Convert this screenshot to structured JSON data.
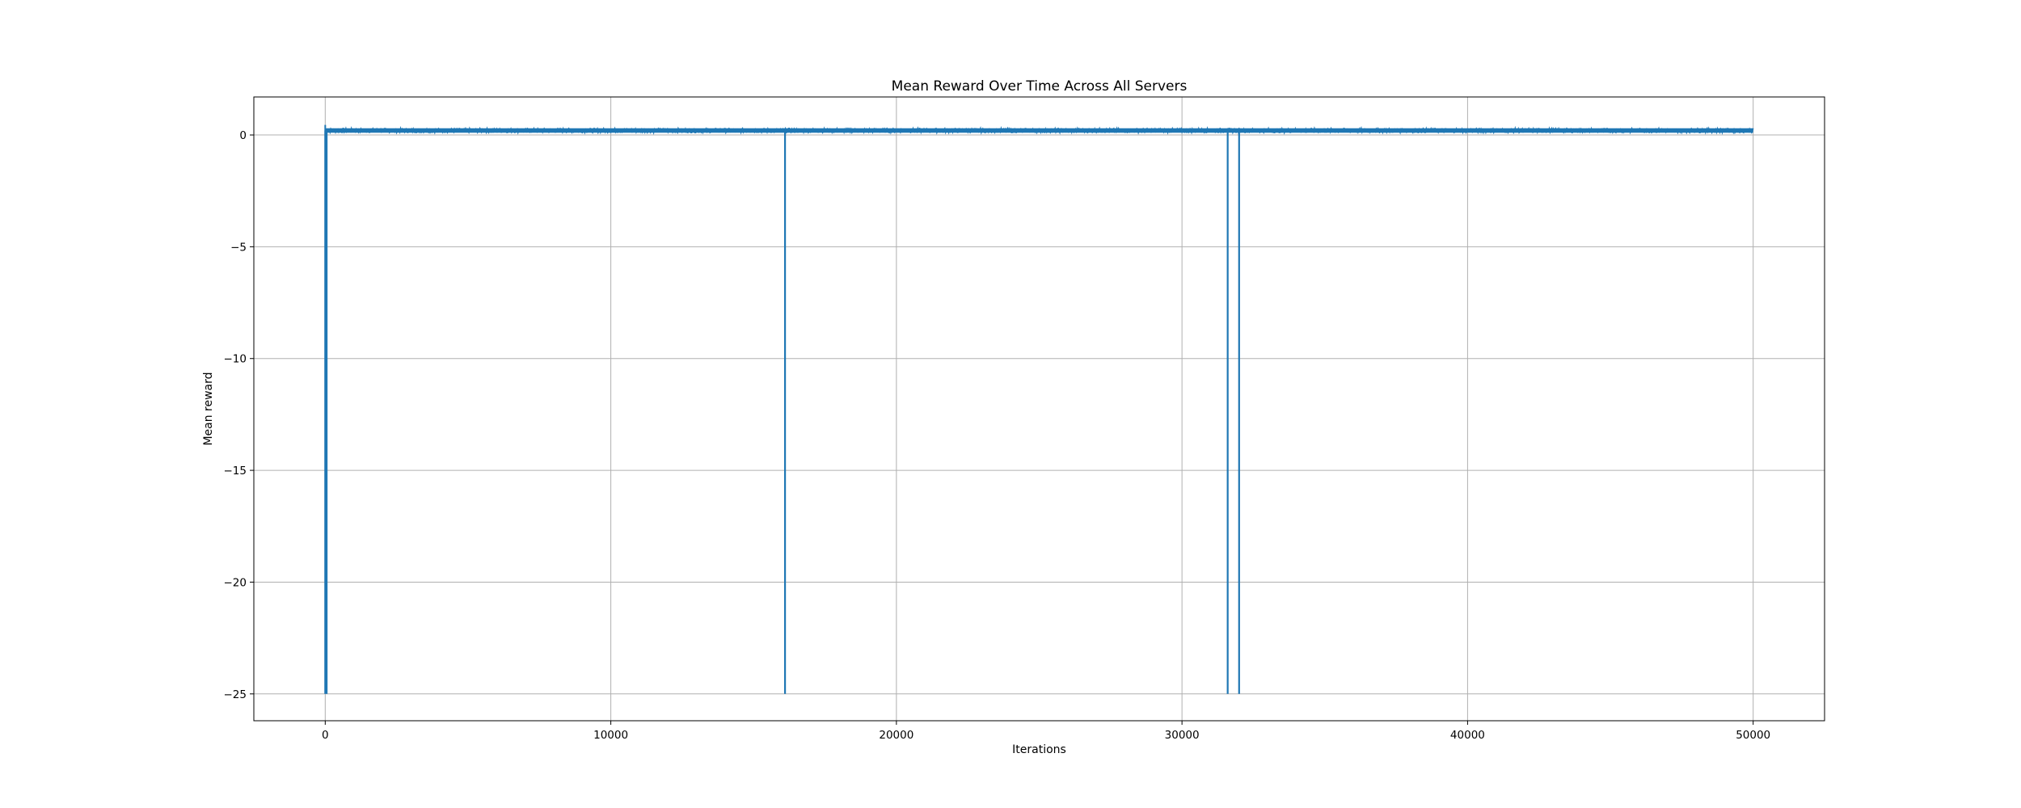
{
  "chart_data": {
    "type": "line",
    "title": "Mean Reward Over Time Across All Servers",
    "xlabel": "Iterations",
    "ylabel": "Mean reward",
    "xlim": [
      -2500,
      52500
    ],
    "ylim": [
      -26.2,
      1.7
    ],
    "x_ticks": [
      {
        "value": 0,
        "label": "0"
      },
      {
        "value": 10000,
        "label": "10000"
      },
      {
        "value": 20000,
        "label": "20000"
      },
      {
        "value": 30000,
        "label": "30000"
      },
      {
        "value": 40000,
        "label": "40000"
      },
      {
        "value": 50000,
        "label": "50000"
      }
    ],
    "y_ticks": [
      {
        "value": 0,
        "label": "0"
      },
      {
        "value": -5,
        "label": "−5"
      },
      {
        "value": -10,
        "label": "−10"
      },
      {
        "value": -15,
        "label": "−15"
      },
      {
        "value": -20,
        "label": "−20"
      },
      {
        "value": -25,
        "label": "−25"
      }
    ],
    "grid": true,
    "color": "#1f77b4",
    "series": [
      {
        "x_start": 0,
        "x_end": 50000,
        "baseline": 0.2,
        "band_low": 0.1,
        "band_high": 0.3,
        "initial_value": 0.45,
        "spikes": [
          {
            "x": 0,
            "y": -25
          },
          {
            "x": 50,
            "y": -25
          },
          {
            "x": 16100,
            "y": -25
          },
          {
            "x": 31600,
            "y": -25
          },
          {
            "x": 32000,
            "y": -25
          }
        ]
      }
    ]
  }
}
